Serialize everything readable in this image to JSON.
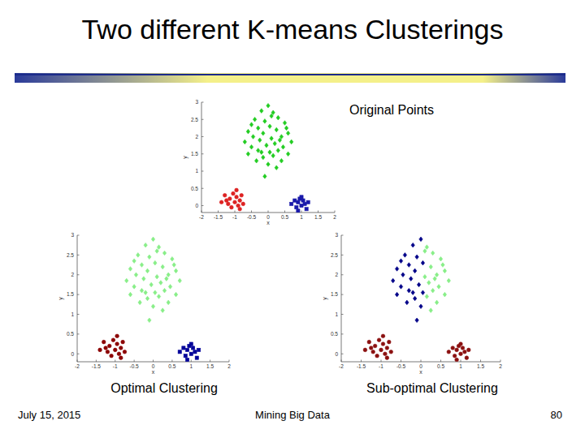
{
  "slide": {
    "title": "Two different K-means Clusterings",
    "date": "July 15, 2015",
    "footer": "Mining Big Data",
    "page": 80
  },
  "chart_data": [
    {
      "type": "scatter",
      "title": "Original Points",
      "x_label": "x",
      "y_label": "y",
      "xlim": [
        -2,
        2
      ],
      "ylim": [
        -0.2,
        3
      ],
      "xticks": [
        -2,
        -1.5,
        -1,
        -0.5,
        0,
        0.5,
        1,
        1.5,
        2
      ],
      "yticks": [
        0,
        0.5,
        1,
        1.5,
        2,
        2.5,
        3
      ],
      "series": [
        {
          "color": "#22cc22",
          "marker": "diamond",
          "x": [
            0,
            -0.2,
            0.15,
            0.3,
            -0.4,
            -0.1,
            0.5,
            0.05,
            -0.3,
            0.25,
            -0.6,
            0.6,
            -0.15,
            0.4,
            -0.45,
            0.1,
            -0.25,
            0.7,
            -0.7,
            0.2,
            -0.05,
            0.45,
            -0.5,
            0.3,
            -0.3,
            0.05,
            0.6,
            -0.6,
            0.15,
            -0.15,
            0.4,
            -0.35,
            0.0,
            0.25,
            -0.1,
            0.1,
            -0.5,
            0.35,
            -0.2,
            0.55
          ],
          "values": [
            2.9,
            2.75,
            2.7,
            2.55,
            2.5,
            2.45,
            2.4,
            2.3,
            2.25,
            2.2,
            2.15,
            2.1,
            2.1,
            2.0,
            2.0,
            1.95,
            1.9,
            1.85,
            1.85,
            1.8,
            1.75,
            1.7,
            1.7,
            1.6,
            1.6,
            1.55,
            1.5,
            1.5,
            1.45,
            1.4,
            1.3,
            1.3,
            1.2,
            1.1,
            0.85,
            2.6,
            2.35,
            1.9,
            1.55,
            2.25
          ]
        },
        {
          "color": "#dd2222",
          "marker": "circle",
          "x": [
            -1.3,
            -1.2,
            -1.15,
            -1.05,
            -1.0,
            -0.95,
            -0.9,
            -0.85,
            -0.8,
            -1.1,
            -0.75,
            -1.25,
            -0.95,
            -1.4,
            -0.85
          ],
          "values": [
            0.3,
            0.05,
            0.2,
            0.35,
            0.1,
            0.25,
            0.0,
            0.15,
            0.3,
            -0.05,
            0.05,
            0.15,
            0.45,
            0.1,
            -0.1
          ]
        },
        {
          "color": "#1a1aaa",
          "marker": "square",
          "x": [
            0.7,
            0.8,
            0.85,
            0.9,
            0.95,
            1.0,
            1.05,
            1.1,
            1.15,
            1.2,
            0.9,
            1.0
          ],
          "values": [
            0.05,
            0.15,
            -0.05,
            0.1,
            0.2,
            0.0,
            0.15,
            0.05,
            -0.1,
            0.1,
            -0.15,
            0.25
          ]
        }
      ]
    },
    {
      "type": "scatter",
      "title": "Optimal Clustering",
      "x_label": "x",
      "y_label": "y",
      "xlim": [
        -2,
        2
      ],
      "ylim": [
        -0.2,
        3
      ],
      "xticks": [
        -2,
        -1.5,
        -1,
        -0.5,
        0,
        0.5,
        1,
        1.5,
        2
      ],
      "yticks": [
        0,
        0.5,
        1,
        1.5,
        2,
        2.5,
        3
      ],
      "series": [
        {
          "color": "#88ee88",
          "marker": "diamond",
          "x": [
            0,
            -0.2,
            0.15,
            0.3,
            -0.4,
            -0.1,
            0.5,
            0.05,
            -0.3,
            0.25,
            -0.6,
            0.6,
            -0.15,
            0.4,
            -0.45,
            0.1,
            -0.25,
            0.7,
            -0.7,
            0.2,
            -0.05,
            0.45,
            -0.5,
            0.3,
            -0.3,
            0.05,
            0.6,
            -0.6,
            0.15,
            -0.15,
            0.4,
            -0.35,
            0.0,
            0.25,
            -0.1,
            0.1,
            -0.5,
            0.35,
            -0.2,
            0.55
          ],
          "values": [
            2.9,
            2.75,
            2.7,
            2.55,
            2.5,
            2.45,
            2.4,
            2.3,
            2.25,
            2.2,
            2.15,
            2.1,
            2.1,
            2.0,
            2.0,
            1.95,
            1.9,
            1.85,
            1.85,
            1.8,
            1.75,
            1.7,
            1.7,
            1.6,
            1.6,
            1.55,
            1.5,
            1.5,
            1.45,
            1.4,
            1.3,
            1.3,
            1.2,
            1.1,
            0.85,
            2.6,
            2.35,
            1.9,
            1.55,
            2.25
          ]
        },
        {
          "color": "#8b0000",
          "marker": "circle",
          "x": [
            -1.3,
            -1.2,
            -1.15,
            -1.05,
            -1.0,
            -0.95,
            -0.9,
            -0.85,
            -0.8,
            -1.1,
            -0.75,
            -1.25,
            -0.95,
            -1.4,
            -0.85
          ],
          "values": [
            0.3,
            0.05,
            0.2,
            0.35,
            0.1,
            0.25,
            0.0,
            0.15,
            0.3,
            -0.05,
            0.05,
            0.15,
            0.45,
            0.1,
            -0.1
          ]
        },
        {
          "color": "#000099",
          "marker": "square",
          "x": [
            0.7,
            0.8,
            0.85,
            0.9,
            0.95,
            1.0,
            1.05,
            1.1,
            1.15,
            1.2,
            0.9,
            1.0
          ],
          "values": [
            0.05,
            0.15,
            -0.05,
            0.1,
            0.2,
            0.0,
            0.15,
            0.05,
            -0.1,
            0.1,
            -0.15,
            0.25
          ]
        }
      ]
    },
    {
      "type": "scatter",
      "title": "Sub-optimal Clustering",
      "x_label": "x",
      "y_label": "y",
      "xlim": [
        -2,
        2
      ],
      "ylim": [
        -0.2,
        3
      ],
      "xticks": [
        -2,
        -1.5,
        -1,
        -0.5,
        0,
        0.5,
        1,
        1.5,
        2
      ],
      "yticks": [
        0,
        0.5,
        1,
        1.5,
        2,
        2.5,
        3
      ],
      "series": [
        {
          "color": "#8b1010",
          "marker": "circle",
          "x": [
            -1.3,
            -1.2,
            -1.15,
            -1.05,
            -1.0,
            -0.95,
            -0.9,
            -0.85,
            -0.8,
            -1.1,
            -0.75,
            -1.25,
            -0.95,
            -1.4,
            -0.85,
            0.7,
            0.8,
            0.85,
            0.9,
            0.95,
            1.0,
            1.05,
            1.1,
            1.15,
            1.2,
            0.9,
            1.0
          ],
          "values": [
            0.3,
            0.05,
            0.2,
            0.35,
            0.1,
            0.25,
            0.0,
            0.15,
            0.3,
            -0.05,
            0.05,
            0.15,
            0.45,
            0.1,
            -0.1,
            0.05,
            0.15,
            -0.05,
            0.1,
            0.2,
            0.0,
            0.15,
            0.05,
            -0.1,
            0.1,
            -0.15,
            0.25
          ]
        },
        {
          "color": "#000088",
          "marker": "diamond",
          "x": [
            0,
            -0.2,
            -0.4,
            -0.1,
            0.05,
            -0.3,
            -0.6,
            -0.15,
            -0.45,
            -0.25,
            -0.7,
            -0.05,
            -0.5,
            -0.3,
            0.05,
            -0.6,
            -0.15,
            -0.35,
            0.0,
            -0.1,
            -0.5,
            -0.2
          ],
          "values": [
            2.9,
            2.75,
            2.5,
            2.45,
            2.3,
            2.25,
            2.15,
            2.1,
            2.0,
            1.9,
            1.85,
            1.75,
            1.7,
            1.6,
            1.55,
            1.5,
            1.4,
            1.3,
            1.2,
            0.85,
            2.35,
            1.55
          ]
        },
        {
          "color": "#88ee88",
          "marker": "diamond",
          "x": [
            0.15,
            0.3,
            0.5,
            0.25,
            0.6,
            0.4,
            0.1,
            0.7,
            0.2,
            0.45,
            0.3,
            0.6,
            0.15,
            0.4,
            0.25,
            0.1,
            0.35,
            0.55
          ],
          "values": [
            2.7,
            2.55,
            2.4,
            2.2,
            2.1,
            2.0,
            1.95,
            1.85,
            1.8,
            1.7,
            1.6,
            1.5,
            1.45,
            1.3,
            1.1,
            2.6,
            1.9,
            2.25
          ]
        }
      ]
    }
  ]
}
